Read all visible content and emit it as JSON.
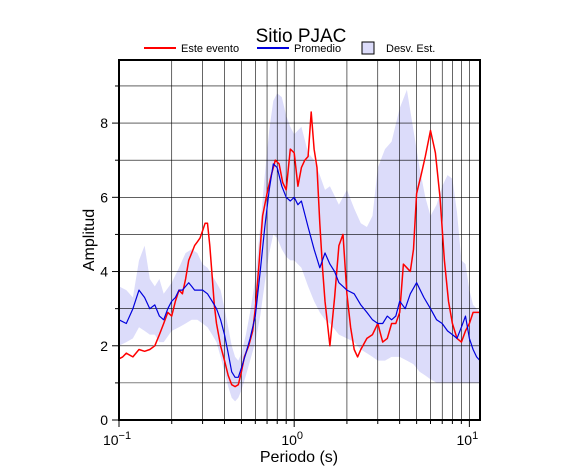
{
  "chart_data": {
    "type": "line",
    "title": "Sitio PJAC",
    "xlabel": "Periodo (s)",
    "ylabel": "Amplitud",
    "xscale": "log",
    "xlim": [
      0.1,
      11.5
    ],
    "ylim": [
      0,
      9.7
    ],
    "xtick_labels": [
      {
        "value": 0.1,
        "base": "10",
        "exp": "−1"
      },
      {
        "value": 1,
        "base": "10",
        "exp": "0"
      },
      {
        "value": 10,
        "base": "10",
        "exp": "1"
      }
    ],
    "ytick_labels": [
      "0",
      "2",
      "4",
      "6",
      "8"
    ],
    "yticks": [
      0,
      2,
      4,
      6,
      8
    ],
    "grid": "on",
    "legend_position": "top",
    "legend": {
      "event": "Este evento",
      "mean": "Promedio",
      "std": "Desv. Est."
    },
    "colors": {
      "event": "#ff0000",
      "mean": "#0000dd",
      "band": "#dcdcfa",
      "grid": "#000000"
    },
    "series": [
      {
        "name": "Este evento",
        "x": [
          0.1,
          0.105,
          0.11,
          0.12,
          0.13,
          0.14,
          0.15,
          0.16,
          0.17,
          0.18,
          0.19,
          0.2,
          0.21,
          0.22,
          0.23,
          0.24,
          0.25,
          0.26,
          0.27,
          0.28,
          0.29,
          0.3,
          0.31,
          0.32,
          0.33,
          0.34,
          0.35,
          0.36,
          0.38,
          0.4,
          0.42,
          0.44,
          0.46,
          0.48,
          0.5,
          0.52,
          0.55,
          0.58,
          0.6,
          0.63,
          0.66,
          0.7,
          0.74,
          0.78,
          0.82,
          0.86,
          0.9,
          0.95,
          1.0,
          1.05,
          1.1,
          1.15,
          1.2,
          1.25,
          1.3,
          1.35,
          1.4,
          1.45,
          1.5,
          1.6,
          1.7,
          1.8,
          1.9,
          2.0,
          2.1,
          2.2,
          2.3,
          2.4,
          2.6,
          2.8,
          3.0,
          3.2,
          3.4,
          3.6,
          3.8,
          4.0,
          4.2,
          4.4,
          4.6,
          4.8,
          5.0,
          5.3,
          5.6,
          6.0,
          6.4,
          6.8,
          7.2,
          7.6,
          8.0,
          8.5,
          9.0,
          9.5,
          10.0,
          10.5,
          11.0,
          11.5
        ],
        "values": [
          1.65,
          1.7,
          1.8,
          1.7,
          1.9,
          1.85,
          1.9,
          2.0,
          2.3,
          2.6,
          2.9,
          2.8,
          3.2,
          3.5,
          3.4,
          3.8,
          4.3,
          4.5,
          4.7,
          4.8,
          4.9,
          5.1,
          5.3,
          5.3,
          4.7,
          3.9,
          3.1,
          2.6,
          2.0,
          1.6,
          1.2,
          0.95,
          0.9,
          0.95,
          1.3,
          1.7,
          2.0,
          2.4,
          3.0,
          4.2,
          5.5,
          6.1,
          6.6,
          7.0,
          6.9,
          6.4,
          6.2,
          7.3,
          7.2,
          6.3,
          6.8,
          7.0,
          7.1,
          8.3,
          7.3,
          6.8,
          5.3,
          4.1,
          3.2,
          2.0,
          3.3,
          4.7,
          5.0,
          3.4,
          2.5,
          1.9,
          1.7,
          1.9,
          2.2,
          2.3,
          2.6,
          2.1,
          2.2,
          2.6,
          2.6,
          2.9,
          4.2,
          4.1,
          4.0,
          4.6,
          6.1,
          6.6,
          7.1,
          7.8,
          7.2,
          6.0,
          4.3,
          3.2,
          2.6,
          2.2,
          2.1,
          2.4,
          2.6,
          2.9,
          2.9,
          2.9
        ]
      },
      {
        "name": "Promedio",
        "x": [
          0.1,
          0.11,
          0.12,
          0.13,
          0.14,
          0.15,
          0.16,
          0.17,
          0.18,
          0.19,
          0.2,
          0.21,
          0.22,
          0.23,
          0.24,
          0.25,
          0.26,
          0.27,
          0.28,
          0.3,
          0.32,
          0.34,
          0.36,
          0.38,
          0.4,
          0.42,
          0.44,
          0.46,
          0.48,
          0.5,
          0.53,
          0.56,
          0.6,
          0.64,
          0.68,
          0.72,
          0.76,
          0.8,
          0.85,
          0.9,
          0.95,
          1.0,
          1.05,
          1.1,
          1.2,
          1.3,
          1.4,
          1.5,
          1.6,
          1.7,
          1.8,
          1.9,
          2.0,
          2.2,
          2.4,
          2.6,
          2.8,
          3.0,
          3.2,
          3.4,
          3.6,
          3.8,
          4.0,
          4.3,
          4.6,
          5.0,
          5.5,
          6.0,
          6.5,
          7.0,
          7.5,
          8.0,
          8.5,
          9.0,
          9.5,
          10.0,
          10.5,
          11.0,
          11.5
        ],
        "values": [
          2.7,
          2.6,
          3.0,
          3.5,
          3.3,
          3.0,
          3.1,
          2.8,
          2.7,
          3.0,
          3.2,
          3.3,
          3.5,
          3.5,
          3.6,
          3.7,
          3.6,
          3.5,
          3.5,
          3.5,
          3.4,
          3.2,
          3.0,
          2.7,
          2.3,
          1.8,
          1.3,
          1.15,
          1.15,
          1.4,
          1.8,
          2.2,
          2.8,
          4.0,
          5.2,
          6.2,
          6.9,
          6.8,
          6.3,
          6.0,
          5.9,
          6.0,
          5.8,
          5.9,
          5.2,
          4.6,
          4.1,
          4.5,
          4.2,
          4.0,
          3.7,
          3.6,
          3.5,
          3.4,
          3.1,
          2.9,
          2.7,
          2.6,
          2.6,
          2.8,
          2.7,
          2.8,
          3.2,
          3.0,
          3.4,
          3.7,
          3.3,
          3.0,
          2.7,
          2.6,
          2.4,
          2.3,
          2.2,
          2.5,
          2.8,
          2.2,
          1.9,
          1.7,
          1.6
        ]
      }
    ],
    "std_band": {
      "name": "Desv. Est.",
      "x": [
        0.1,
        0.11,
        0.12,
        0.13,
        0.14,
        0.15,
        0.16,
        0.17,
        0.18,
        0.2,
        0.22,
        0.24,
        0.26,
        0.28,
        0.3,
        0.32,
        0.34,
        0.36,
        0.38,
        0.4,
        0.42,
        0.44,
        0.46,
        0.48,
        0.5,
        0.53,
        0.56,
        0.6,
        0.64,
        0.68,
        0.72,
        0.76,
        0.8,
        0.85,
        0.9,
        0.95,
        1.0,
        1.1,
        1.2,
        1.3,
        1.4,
        1.5,
        1.6,
        1.8,
        2.0,
        2.2,
        2.4,
        2.6,
        2.8,
        3.0,
        3.3,
        3.6,
        4.0,
        4.4,
        4.8,
        5.2,
        5.6,
        6.0,
        6.5,
        7.0,
        7.5,
        8.0,
        8.5,
        9.0,
        9.5,
        10.0,
        10.5,
        11.0,
        11.5
      ],
      "upper": [
        3.6,
        3.5,
        3.3,
        4.3,
        4.7,
        3.8,
        3.6,
        3.8,
        3.4,
        3.7,
        4.1,
        4.5,
        4.6,
        4.5,
        4.2,
        4.1,
        3.9,
        3.7,
        3.5,
        3.0,
        2.5,
        2.0,
        1.7,
        1.6,
        1.8,
        2.3,
        2.9,
        3.8,
        5.2,
        6.6,
        7.8,
        8.6,
        8.8,
        8.7,
        8.2,
        7.9,
        7.7,
        7.9,
        7.2,
        7.0,
        6.6,
        6.2,
        6.3,
        5.8,
        6.2,
        5.7,
        5.3,
        5.2,
        5.5,
        6.8,
        7.3,
        7.5,
        8.4,
        8.9,
        7.8,
        6.8,
        6.0,
        5.5,
        5.8,
        6.3,
        6.6,
        6.5,
        5.6,
        4.3,
        4.2,
        3.5,
        3.1,
        3.0,
        2.9
      ],
      "lower": [
        2.0,
        2.1,
        2.2,
        2.5,
        2.4,
        2.3,
        2.3,
        2.1,
        2.1,
        2.4,
        2.5,
        2.6,
        2.7,
        2.7,
        2.6,
        2.5,
        2.3,
        2.1,
        1.7,
        1.3,
        0.9,
        0.6,
        0.5,
        0.6,
        0.8,
        1.2,
        1.6,
        2.1,
        2.8,
        3.7,
        4.5,
        5.0,
        4.9,
        4.6,
        4.4,
        4.3,
        4.3,
        4.1,
        3.6,
        3.2,
        2.9,
        2.7,
        2.6,
        2.3,
        2.2,
        2.1,
        1.9,
        1.8,
        1.7,
        1.6,
        1.6,
        1.7,
        1.7,
        1.6,
        1.5,
        1.3,
        1.2,
        1.1,
        1.0,
        1.0,
        1.0,
        1.0,
        1.0,
        1.0,
        1.0,
        1.0,
        1.0,
        1.0,
        1.0
      ]
    }
  }
}
